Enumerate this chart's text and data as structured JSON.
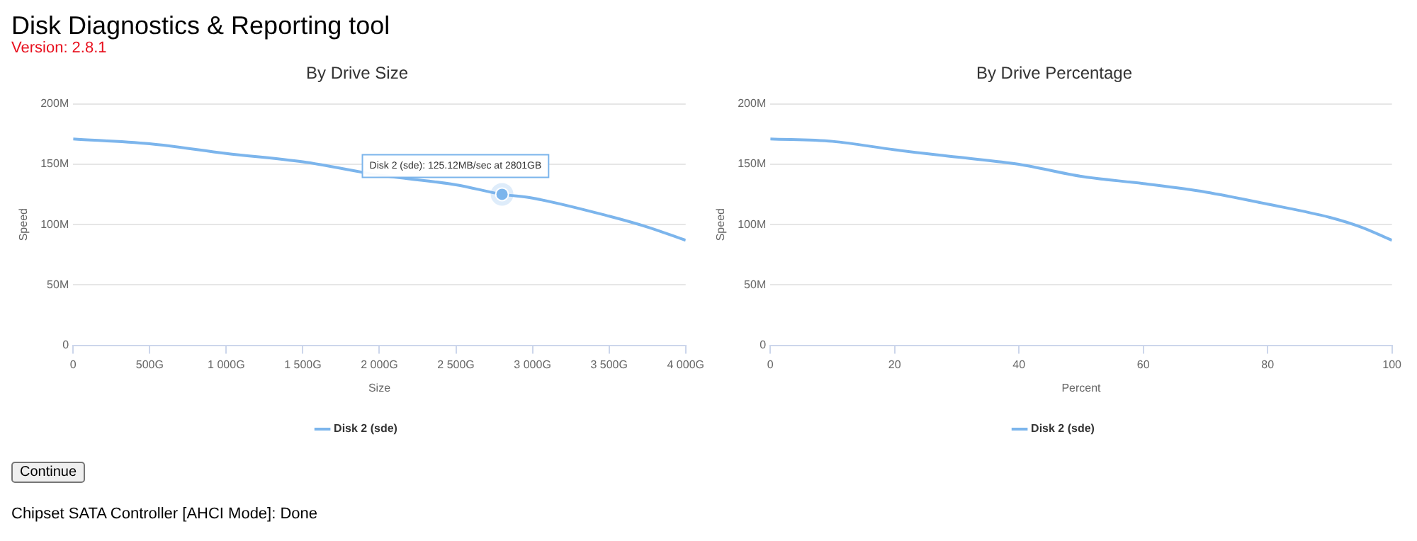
{
  "chart_data": [
    {
      "type": "other",
      "title": "Disk Diagnostics & Reporting tool",
      "subtitle": "Version: 2.8.1"
    },
    {
      "type": "line",
      "title": "By Drive Size",
      "xlabel": "Size",
      "ylabel": "Speed",
      "xlim": [
        0,
        4000
      ],
      "xticks": [
        0,
        {
          "value": 500,
          "label": "500G"
        },
        {
          "value": 1000,
          "label": "1 000G"
        },
        {
          "value": 1500,
          "label": "1 500G"
        },
        {
          "value": 2000,
          "label": "2 000G"
        },
        {
          "value": 2500,
          "label": "2 500G"
        },
        {
          "value": 3000,
          "label": "3 000G"
        },
        {
          "value": 3500,
          "label": "3 500G"
        },
        {
          "value": 4000,
          "label": "4 000G"
        }
      ],
      "ylim": [
        0,
        200
      ],
      "yticks": [
        0,
        {
          "value": 50,
          "label": "50M"
        },
        {
          "value": 100,
          "label": "100M"
        },
        {
          "value": 150,
          "label": "150M"
        },
        {
          "value": 200,
          "label": "200M"
        }
      ],
      "series": [
        {
          "name": "Disk 2 (sde)",
          "color": "#7cb5ec",
          "x": [
            0,
            500,
            1000,
            1500,
            2000,
            2500,
            2801,
            3000,
            3500,
            3750,
            4000
          ],
          "values": [
            171,
            167,
            159,
            152,
            141,
            133,
            125.12,
            122,
            107,
            98,
            87
          ]
        }
      ],
      "annotations": [
        {
          "text": "Disk 2 (sde): 125.12MB/sec at 2801GB",
          "x": 2801,
          "y": 125.12
        }
      ],
      "grid": "y",
      "legend": "bottom",
      "marker": "none",
      "line_style": "solid"
    },
    {
      "type": "line",
      "title": "By Drive Percentage",
      "xlabel": "Percent",
      "ylabel": "Speed",
      "xlim": [
        0,
        100
      ],
      "xticks": [
        0,
        20,
        40,
        60,
        80,
        100
      ],
      "ylim": [
        0,
        200
      ],
      "yticks": [
        0,
        {
          "value": 50,
          "label": "50M"
        },
        {
          "value": 100,
          "label": "100M"
        },
        {
          "value": 150,
          "label": "150M"
        },
        {
          "value": 200,
          "label": "200M"
        }
      ],
      "series": [
        {
          "name": "Disk 2 (sde)",
          "color": "#7cb5ec",
          "x": [
            0,
            10,
            20,
            30,
            40,
            50,
            60,
            70,
            80,
            90,
            95,
            100
          ],
          "values": [
            171,
            169,
            162,
            156,
            150,
            140,
            134,
            127,
            117,
            106,
            98,
            87
          ]
        }
      ],
      "grid": "y",
      "legend": "bottom",
      "marker": "none",
      "line_style": "solid"
    },
    {
      "type": "other",
      "annotations": [
        "Continue",
        "Chipset SATA Controller [AHCI Mode]: Done"
      ]
    }
  ]
}
